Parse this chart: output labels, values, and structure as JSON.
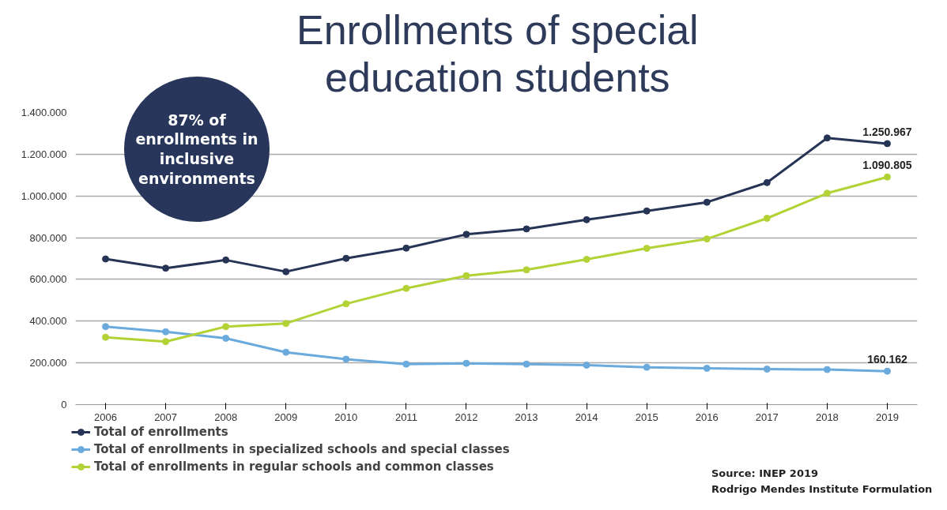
{
  "chart_data": {
    "type": "line",
    "title": "Enrollments of special\neducation students",
    "categories": [
      "2006",
      "2007",
      "2008",
      "2009",
      "2010",
      "2011",
      "2012",
      "2013",
      "2014",
      "2015",
      "2016",
      "2017",
      "2018",
      "2019"
    ],
    "series": [
      {
        "name": "Total of enrollments",
        "color": "#263556",
        "values": [
          698000,
          654000,
          693000,
          637000,
          701000,
          750000,
          816000,
          842000,
          886000,
          928000,
          970000,
          1064000,
          1278000,
          1250967
        ],
        "value_labels": [
          null,
          null,
          null,
          null,
          null,
          null,
          null,
          null,
          null,
          null,
          null,
          null,
          null,
          "1.250.967"
        ]
      },
      {
        "name": "Total of enrollments in specialized schools and special classes",
        "color": "#6aaadc",
        "values": [
          374000,
          349000,
          318000,
          251000,
          218000,
          194000,
          198000,
          194000,
          189000,
          179000,
          174000,
          170000,
          168000,
          160162
        ],
        "value_labels": [
          null,
          null,
          null,
          null,
          null,
          null,
          null,
          null,
          null,
          null,
          null,
          null,
          null,
          "160.162"
        ]
      },
      {
        "name": "Total of enrollments in regular schools and common classes",
        "color": "#b3d235",
        "values": [
          323000,
          302000,
          374000,
          389000,
          483000,
          557000,
          618000,
          646000,
          696000,
          749000,
          794000,
          893000,
          1013000,
          1090805
        ],
        "value_labels": [
          null,
          null,
          null,
          null,
          null,
          null,
          null,
          null,
          null,
          null,
          null,
          null,
          null,
          "1.090.805"
        ]
      }
    ],
    "ylim": [
      0,
      1400000
    ],
    "yticks": [
      0,
      {
        "value": 200000,
        "label": "200.000"
      },
      {
        "value": 400000,
        "label": "400.000"
      },
      {
        "value": 600000,
        "label": "600.000"
      },
      {
        "value": 800000,
        "label": "800.000"
      },
      {
        "value": 1000000,
        "label": "1.000.000"
      },
      {
        "value": 1200000,
        "label": "1.200.000"
      },
      {
        "value": 1400000,
        "label": "1.400.000"
      }
    ],
    "grid": "y",
    "legend": "bottom",
    "marker": "circle",
    "line_style": "solid",
    "annotations": [
      "87% of enrollments in inclusive environments",
      "Source: INEP 2019",
      "Rodrigo Mendes Institute Formulation"
    ]
  }
}
